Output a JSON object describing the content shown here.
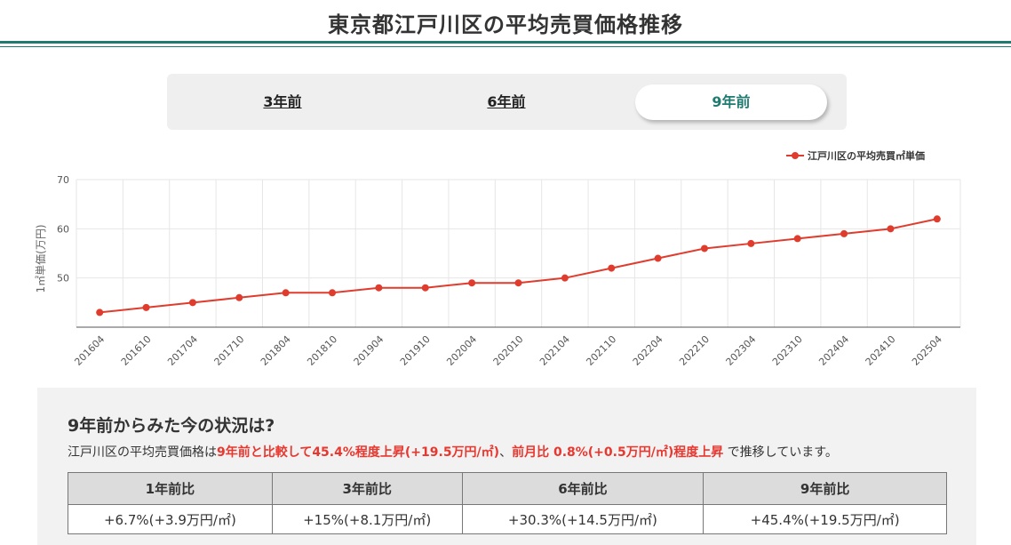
{
  "page": {
    "title": "東京都江戸川区の平均売買価格推移"
  },
  "tabs": [
    {
      "label": "3年前",
      "active": false
    },
    {
      "label": "6年前",
      "active": false
    },
    {
      "label": "9年前",
      "active": true
    }
  ],
  "colors": {
    "accent": "#1f7a6f",
    "series": "#e03c2e",
    "highlight": "#e8372f"
  },
  "chart_data": {
    "type": "line",
    "x": [
      "201604",
      "201610",
      "201704",
      "201710",
      "201804",
      "201810",
      "201904",
      "201910",
      "202004",
      "202010",
      "202104",
      "202110",
      "202204",
      "202210",
      "202304",
      "202310",
      "202404",
      "202410",
      "202504"
    ],
    "series": [
      {
        "name": "江戸川区の平均売買㎡単価",
        "values": [
          43,
          44,
          45,
          46,
          47,
          47,
          48,
          48,
          49,
          49,
          50,
          52,
          54,
          56,
          57,
          58,
          59,
          60,
          62
        ]
      }
    ],
    "ylabel": "1㎡単価(万円)",
    "yticks": [
      50,
      60,
      70
    ],
    "ylim": [
      40,
      70
    ],
    "grid": true,
    "legend_position": "top-right"
  },
  "summary": {
    "heading": "9年前からみた今の状況は?",
    "text_prefix": "江戸川区の平均売買価格は",
    "text_highlight_1": "9年前と比較して45.4%程度上昇(+19.5万円/㎡)",
    "text_separator": "、",
    "text_highlight_2": "前月比 0.8%(+0.5万円/㎡)程度上昇",
    "text_suffix": " で推移しています。"
  },
  "comparison_table": {
    "headers": [
      "1年前比",
      "3年前比",
      "6年前比",
      "9年前比"
    ],
    "values": [
      "+6.7%(+3.9万円/㎡)",
      "+15%(+8.1万円/㎡)",
      "+30.3%(+14.5万円/㎡)",
      "+45.4%(+19.5万円/㎡)"
    ]
  }
}
